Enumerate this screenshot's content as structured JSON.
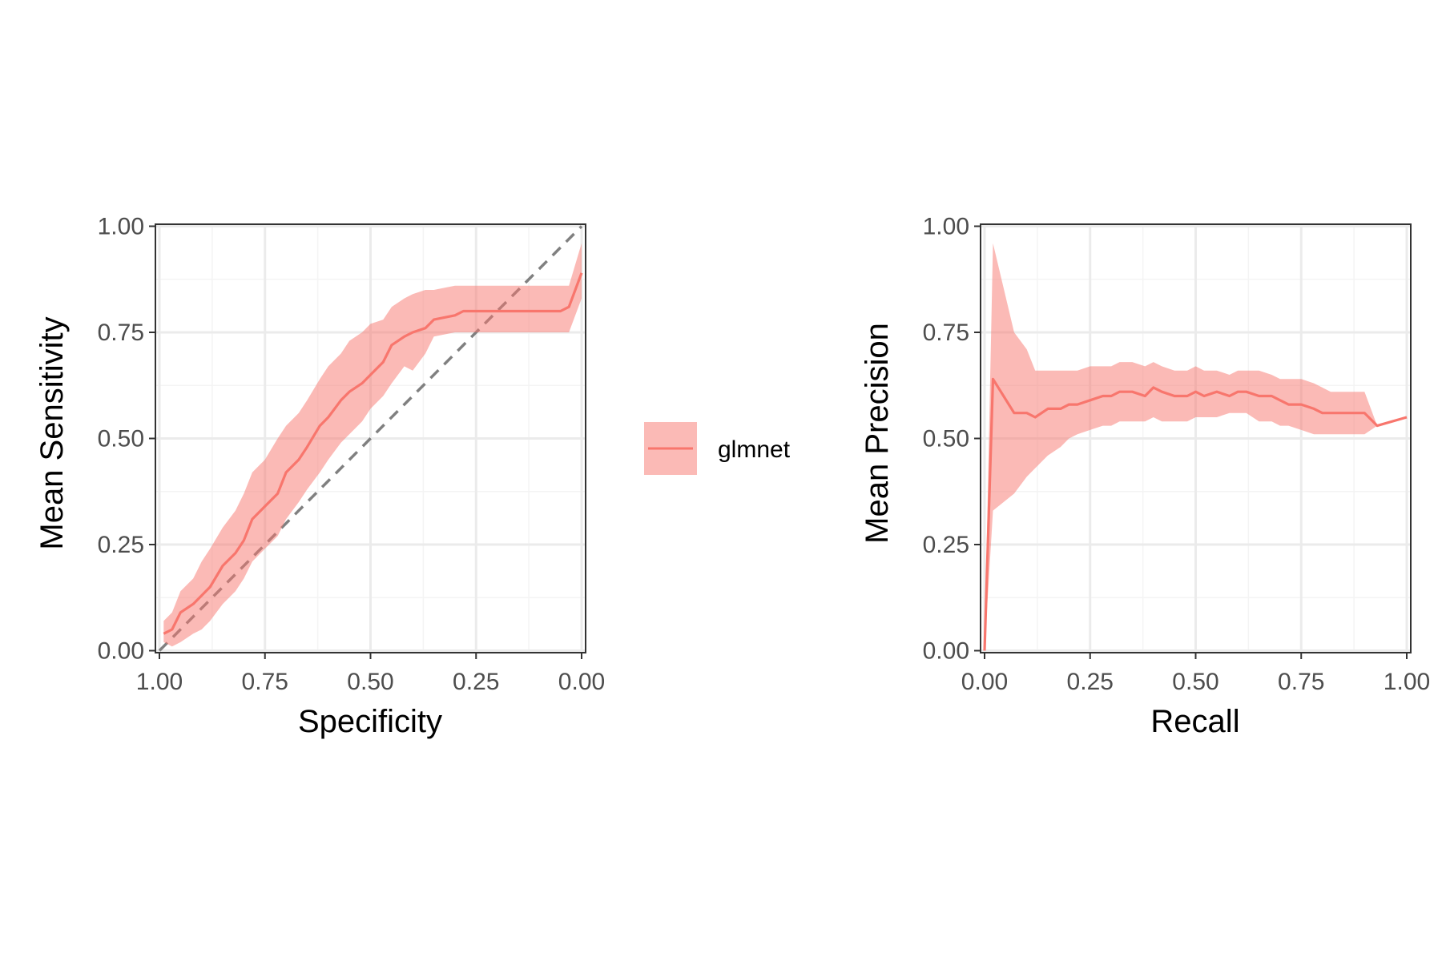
{
  "legend": {
    "label": "glmnet",
    "position": "between panels"
  },
  "colors": {
    "series": "#F8766D",
    "ribbon": "#F8766D",
    "ribbon_opacity": 0.5,
    "reference_line": "#808080",
    "grid_major": "#EBEBEB",
    "grid_minor": "#F4F4F4",
    "panel_border": "#333333",
    "tick_text": "#4D4D4D"
  },
  "chart_data": [
    {
      "type": "line",
      "xlabel": "Specificity",
      "ylabel": "Mean Sensitivity",
      "xlim": [
        1.0,
        0.0
      ],
      "x_reversed": true,
      "ylim": [
        0.0,
        1.0
      ],
      "xticks": [
        "1.00",
        "0.75",
        "0.50",
        "0.25",
        "0.00"
      ],
      "yticks": [
        "0.00",
        "0.25",
        "0.50",
        "0.75",
        "1.00"
      ],
      "grid": true,
      "reference_line": {
        "from": [
          1.0,
          0.0
        ],
        "to": [
          0.0,
          1.0
        ],
        "style": "dashed"
      },
      "series": [
        {
          "name": "glmnet",
          "x": [
            0.99,
            0.97,
            0.95,
            0.92,
            0.9,
            0.88,
            0.85,
            0.82,
            0.8,
            0.78,
            0.75,
            0.72,
            0.7,
            0.67,
            0.65,
            0.62,
            0.6,
            0.57,
            0.55,
            0.52,
            0.5,
            0.47,
            0.45,
            0.42,
            0.4,
            0.37,
            0.35,
            0.3,
            0.28,
            0.25,
            0.22,
            0.2,
            0.15,
            0.1,
            0.05,
            0.03,
            0.0
          ],
          "y": [
            0.04,
            0.05,
            0.09,
            0.11,
            0.13,
            0.15,
            0.2,
            0.23,
            0.26,
            0.31,
            0.34,
            0.37,
            0.42,
            0.45,
            0.48,
            0.53,
            0.55,
            0.59,
            0.61,
            0.63,
            0.65,
            0.68,
            0.72,
            0.74,
            0.75,
            0.76,
            0.78,
            0.79,
            0.8,
            0.8,
            0.8,
            0.8,
            0.8,
            0.8,
            0.8,
            0.81,
            0.89
          ],
          "lower": [
            0.02,
            0.01,
            0.02,
            0.04,
            0.05,
            0.07,
            0.11,
            0.14,
            0.17,
            0.21,
            0.24,
            0.27,
            0.31,
            0.35,
            0.38,
            0.42,
            0.45,
            0.49,
            0.51,
            0.54,
            0.57,
            0.6,
            0.63,
            0.67,
            0.66,
            0.7,
            0.74,
            0.75,
            0.75,
            0.75,
            0.75,
            0.75,
            0.75,
            0.75,
            0.75,
            0.75,
            0.83
          ],
          "upper": [
            0.07,
            0.09,
            0.14,
            0.17,
            0.21,
            0.24,
            0.29,
            0.33,
            0.37,
            0.42,
            0.45,
            0.5,
            0.53,
            0.56,
            0.59,
            0.64,
            0.67,
            0.7,
            0.73,
            0.75,
            0.77,
            0.78,
            0.81,
            0.83,
            0.84,
            0.85,
            0.85,
            0.86,
            0.86,
            0.86,
            0.86,
            0.86,
            0.86,
            0.86,
            0.86,
            0.86,
            0.96
          ]
        }
      ]
    },
    {
      "type": "line",
      "xlabel": "Recall",
      "ylabel": "Mean Precision",
      "xlim": [
        0.0,
        1.0
      ],
      "ylim": [
        0.0,
        1.0
      ],
      "xticks": [
        "0.00",
        "0.25",
        "0.50",
        "0.75",
        "1.00"
      ],
      "yticks": [
        "0.00",
        "0.25",
        "0.50",
        "0.75",
        "1.00"
      ],
      "grid": true,
      "series": [
        {
          "name": "glmnet",
          "x": [
            0.0,
            0.02,
            0.07,
            0.1,
            0.12,
            0.15,
            0.18,
            0.2,
            0.22,
            0.25,
            0.28,
            0.3,
            0.32,
            0.35,
            0.38,
            0.4,
            0.42,
            0.45,
            0.48,
            0.5,
            0.52,
            0.55,
            0.58,
            0.6,
            0.62,
            0.65,
            0.68,
            0.7,
            0.72,
            0.75,
            0.78,
            0.8,
            0.82,
            0.85,
            0.88,
            0.9,
            0.93,
            1.0
          ],
          "y": [
            0.0,
            0.64,
            0.56,
            0.56,
            0.55,
            0.57,
            0.57,
            0.58,
            0.58,
            0.59,
            0.6,
            0.6,
            0.61,
            0.61,
            0.6,
            0.62,
            0.61,
            0.6,
            0.6,
            0.61,
            0.6,
            0.61,
            0.6,
            0.61,
            0.61,
            0.6,
            0.6,
            0.59,
            0.58,
            0.58,
            0.57,
            0.56,
            0.56,
            0.56,
            0.56,
            0.56,
            0.53,
            0.55
          ],
          "lower": [
            0.0,
            0.33,
            0.37,
            0.41,
            0.43,
            0.46,
            0.48,
            0.5,
            0.51,
            0.52,
            0.53,
            0.53,
            0.54,
            0.54,
            0.54,
            0.55,
            0.54,
            0.54,
            0.54,
            0.55,
            0.55,
            0.55,
            0.56,
            0.56,
            0.56,
            0.54,
            0.54,
            0.53,
            0.53,
            0.52,
            0.51,
            0.51,
            0.51,
            0.51,
            0.51,
            0.51,
            0.53,
            0.55
          ],
          "upper": [
            0.0,
            0.96,
            0.75,
            0.71,
            0.66,
            0.66,
            0.66,
            0.66,
            0.66,
            0.67,
            0.67,
            0.67,
            0.68,
            0.68,
            0.67,
            0.68,
            0.67,
            0.66,
            0.66,
            0.67,
            0.66,
            0.66,
            0.65,
            0.66,
            0.66,
            0.66,
            0.65,
            0.64,
            0.64,
            0.64,
            0.63,
            0.62,
            0.61,
            0.61,
            0.61,
            0.61,
            0.53,
            0.55
          ]
        }
      ]
    }
  ]
}
